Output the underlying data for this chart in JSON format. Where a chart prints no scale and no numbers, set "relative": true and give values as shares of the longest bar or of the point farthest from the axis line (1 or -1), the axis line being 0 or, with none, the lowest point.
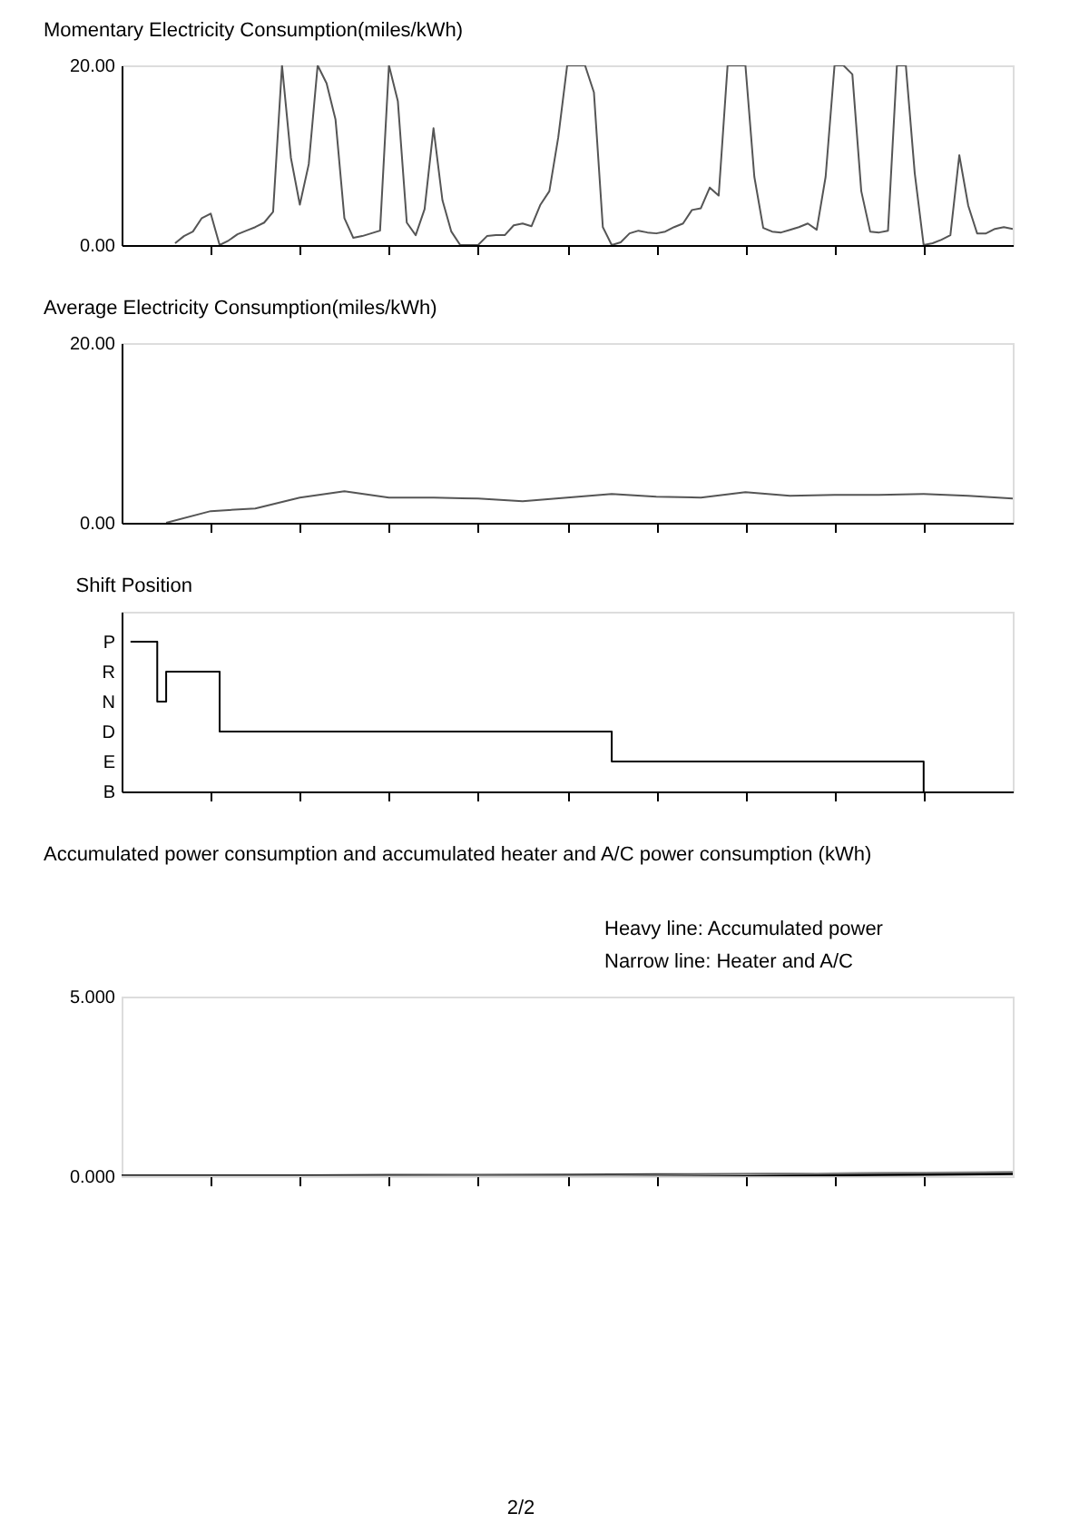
{
  "chart_data": [
    {
      "type": "line",
      "title": "Momentary Electricity Consumption(miles/kWh)",
      "tick_labels": "y",
      "grid": false,
      "line_style": "solid",
      "categories": [
        null,
        null,
        null,
        null,
        null,
        null,
        null,
        null,
        null,
        null,
        null,
        null,
        null,
        null,
        null,
        null,
        null,
        null,
        null,
        null,
        null,
        null,
        null,
        null,
        null,
        null,
        null,
        null,
        null,
        null,
        null,
        null,
        null,
        null,
        null,
        null,
        null,
        null,
        null,
        null,
        null,
        null,
        null,
        null,
        null,
        null,
        null,
        null,
        null,
        null,
        null,
        null,
        null,
        null,
        null,
        null,
        null,
        null,
        null,
        null,
        null,
        null,
        null,
        null,
        null,
        null,
        null,
        null,
        null,
        null,
        null,
        null,
        null,
        null,
        null,
        null,
        null,
        null,
        null,
        null,
        null,
        null,
        null,
        null,
        null,
        null,
        null,
        null,
        null,
        null,
        null,
        null,
        null,
        null,
        null,
        null,
        null,
        null,
        null,
        null,
        null
      ],
      "ylim": [
        0,
        20
      ],
      "yticks": [
        {
          "value": 0,
          "label": "0.00"
        },
        {
          "value": 20,
          "label": "20.00"
        }
      ],
      "series": [
        {
          "color": "#555555",
          "values": [
            null,
            null,
            null,
            null,
            null,
            null,
            0.2,
            1.0,
            1.5,
            3.0,
            3.5,
            0,
            0.5,
            1.2,
            1.6,
            2.0,
            2.5,
            3.7,
            20,
            9.7,
            4.5,
            9,
            20,
            18,
            14,
            3,
            0.8,
            1.0,
            1.3,
            1.6,
            20,
            16,
            2.5,
            1.1,
            4,
            13,
            5,
            1.5,
            0,
            0,
            0,
            1.0,
            1.1,
            1.1,
            2.2,
            2.4,
            2.1,
            4.5,
            6,
            12,
            20,
            20,
            20,
            17,
            2,
            0,
            0.3,
            1.3,
            1.6,
            1.4,
            1.3,
            1.5,
            2.0,
            2.4,
            3.9,
            4.1,
            6.4,
            5.5,
            20,
            20,
            20,
            7.6,
            1.9,
            1.5,
            1.4,
            1.7,
            2.0,
            2.4,
            1.7,
            7.6,
            20,
            20,
            19,
            6,
            1.5,
            1.4,
            1.6,
            20,
            20,
            8,
            0,
            0.2,
            0.6,
            1.1,
            10,
            4.4,
            1.3,
            1.3,
            1.8,
            2.0,
            1.8
          ]
        }
      ]
    },
    {
      "type": "line",
      "title": "Average Electricity Consumption(miles/kWh)",
      "tick_labels": "y",
      "grid": false,
      "line_style": "solid",
      "categories": [
        null,
        null,
        null,
        null,
        null,
        null,
        null,
        null,
        null,
        null,
        null,
        null,
        null,
        null,
        null,
        null,
        null,
        null,
        null,
        null,
        null
      ],
      "ylim": [
        0,
        20
      ],
      "yticks": [
        {
          "value": 0,
          "label": "0.00"
        },
        {
          "value": 20,
          "label": "20.00"
        }
      ],
      "series": [
        {
          "color": "#555555",
          "values": [
            null,
            0,
            1.3,
            1.6,
            2.8,
            3.5,
            2.8,
            2.8,
            2.7,
            2.4,
            2.8,
            3.2,
            2.9,
            2.8,
            3.4,
            3.0,
            3.1,
            3.1,
            3.2,
            3.0,
            2.7
          ]
        }
      ]
    },
    {
      "type": "step",
      "title": "Shift Position",
      "tick_labels": "y",
      "grid": false,
      "line_style": "solid",
      "categories": [
        null,
        null,
        null,
        null,
        null,
        null,
        null,
        null,
        null,
        null,
        null,
        null,
        null,
        null,
        null,
        null,
        null,
        null,
        null,
        null,
        null,
        null,
        null,
        null,
        null,
        null,
        null,
        null,
        null,
        null,
        null,
        null,
        null,
        null,
        null,
        null,
        null,
        null,
        null,
        null,
        null,
        null,
        null,
        null,
        null,
        null,
        null,
        null,
        null,
        null,
        null,
        null,
        null,
        null,
        null,
        null,
        null,
        null,
        null,
        null,
        null,
        null,
        null,
        null,
        null,
        null,
        null,
        null,
        null,
        null,
        null,
        null,
        null,
        null,
        null,
        null,
        null,
        null,
        null,
        null,
        null,
        null,
        null,
        null,
        null,
        null,
        null,
        null,
        null,
        null,
        null,
        null,
        null,
        null,
        null,
        null,
        null,
        null,
        null,
        null,
        null
      ],
      "y_categories": [
        "P",
        "R",
        "N",
        "D",
        "E",
        "B"
      ],
      "relative": true,
      "series": [
        {
          "color": "#000000",
          "values": [
            null,
            1,
            1,
            1,
            0.6,
            0.8,
            0.8,
            0.8,
            0.8,
            0.8,
            0.8,
            0.4,
            0.4,
            0.4,
            0.4,
            0.4,
            0.4,
            0.4,
            0.4,
            0.4,
            0.4,
            0.4,
            0.4,
            0.4,
            0.4,
            0.4,
            0.4,
            0.4,
            0.4,
            0.4,
            0.4,
            0.4,
            0.4,
            0.4,
            0.4,
            0.4,
            0.4,
            0.4,
            0.4,
            0.4,
            0.4,
            0.4,
            0.4,
            0.4,
            0.4,
            0.4,
            0.4,
            0.4,
            0.4,
            0.4,
            0.4,
            0.4,
            0.4,
            0.4,
            0.4,
            0.2,
            0.2,
            0.2,
            0.2,
            0.2,
            0.2,
            0.2,
            0.2,
            0.2,
            0.2,
            0.2,
            0.2,
            0.2,
            0.2,
            0.2,
            0.2,
            0.2,
            0.2,
            0.2,
            0.2,
            0.2,
            0.2,
            0.2,
            0.2,
            0.2,
            0.2,
            0.2,
            0.2,
            0.2,
            0.2,
            0.2,
            0.2,
            0.2,
            0.2,
            0.2,
            0,
            null,
            null,
            null,
            null,
            null,
            null,
            null,
            null,
            null,
            null
          ]
        }
      ]
    },
    {
      "type": "line",
      "title": "Accumulated power consumption and accumulated heater and A/C power consumption (kWh)",
      "tick_labels": "y",
      "grid": false,
      "line_style": "solid",
      "annotations": [
        "Heavy line: Accumulated power",
        "Narrow line: Heater and A/C",
        "2/2"
      ],
      "categories": [
        null,
        null,
        null,
        null,
        null,
        null,
        null,
        null,
        null,
        null,
        null
      ],
      "ylim": [
        0,
        5
      ],
      "yticks": [
        {
          "value": 0,
          "label": "0.000"
        },
        {
          "value": 5,
          "label": "5.000"
        }
      ],
      "series": [
        {
          "color": "#000000",
          "values": [
            0,
            0,
            0,
            0.01,
            0.01,
            0.02,
            0.03,
            0.04,
            0.05,
            0.06,
            0.08
          ]
        },
        {
          "color": "#888888",
          "values": [
            0,
            0,
            0,
            0.01,
            0.02,
            0.02,
            0.03,
            0.05,
            0.08,
            0.1,
            0.12
          ]
        }
      ]
    }
  ]
}
